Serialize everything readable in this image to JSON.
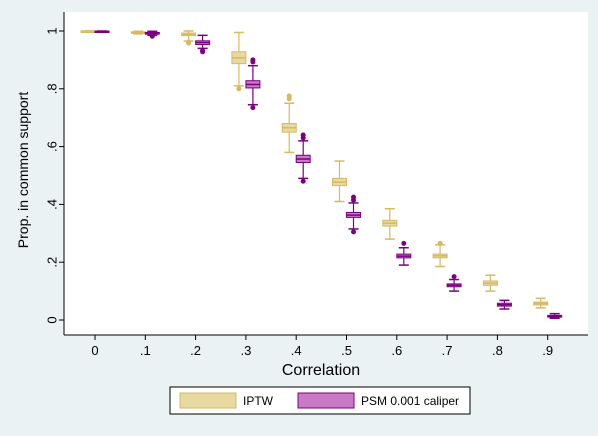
{
  "chart_data": {
    "type": "boxplot",
    "xlabel": "Correlation",
    "ylabel": "Prop. in common support",
    "categories": [
      "0",
      ".1",
      ".2",
      ".3",
      ".4",
      ".5",
      ".6",
      ".7",
      ".8",
      ".9"
    ],
    "x_values": [
      0,
      0.1,
      0.2,
      0.3,
      0.4,
      0.5,
      0.6,
      0.7,
      0.8,
      0.9
    ],
    "ylim": [
      0,
      1
    ],
    "y_ticks": [
      "0",
      ".2",
      ".4",
      ".6",
      ".8",
      "1"
    ],
    "grid": false,
    "legend_position": "bottom",
    "series": [
      {
        "name": "IPTW",
        "color": "#e8d9a0",
        "edge_color": "#d7b963",
        "boxes": [
          {
            "x": 0,
            "min": 0.997,
            "q1": 0.999,
            "median": 1.0,
            "q3": 1.0,
            "max": 1.0,
            "outliers": []
          },
          {
            "x": 0.1,
            "min": 0.99,
            "q1": 0.993,
            "median": 0.995,
            "q3": 0.997,
            "max": 0.999,
            "outliers": []
          },
          {
            "x": 0.2,
            "min": 0.965,
            "q1": 0.984,
            "median": 0.988,
            "q3": 0.993,
            "max": 1.0,
            "outliers": [
              0.962,
              0.958
            ]
          },
          {
            "x": 0.3,
            "min": 0.81,
            "q1": 0.887,
            "median": 0.907,
            "q3": 0.928,
            "max": 0.995,
            "outliers": [
              0.8
            ]
          },
          {
            "x": 0.4,
            "min": 0.58,
            "q1": 0.65,
            "median": 0.665,
            "q3": 0.68,
            "max": 0.75,
            "outliers": [
              0.775,
              0.765
            ]
          },
          {
            "x": 0.5,
            "min": 0.41,
            "q1": 0.465,
            "median": 0.477,
            "q3": 0.49,
            "max": 0.55,
            "outliers": []
          },
          {
            "x": 0.6,
            "min": 0.28,
            "q1": 0.325,
            "median": 0.335,
            "q3": 0.345,
            "max": 0.385,
            "outliers": []
          },
          {
            "x": 0.7,
            "min": 0.185,
            "q1": 0.215,
            "median": 0.222,
            "q3": 0.228,
            "max": 0.26,
            "outliers": [
              0.265
            ]
          },
          {
            "x": 0.8,
            "min": 0.1,
            "q1": 0.12,
            "median": 0.127,
            "q3": 0.135,
            "max": 0.155,
            "outliers": []
          },
          {
            "x": 0.9,
            "min": 0.042,
            "q1": 0.052,
            "median": 0.057,
            "q3": 0.062,
            "max": 0.075,
            "outliers": []
          }
        ]
      },
      {
        "name": "PSM 0.001 caliper",
        "color": "#c97ac4",
        "edge_color": "#7b0080",
        "boxes": [
          {
            "x": 0,
            "min": 0.997,
            "q1": 0.998,
            "median": 0.999,
            "q3": 1.0,
            "max": 1.0,
            "outliers": []
          },
          {
            "x": 0.1,
            "min": 0.985,
            "q1": 0.989,
            "median": 0.992,
            "q3": 0.995,
            "max": 0.999,
            "outliers": [
              0.982
            ]
          },
          {
            "x": 0.2,
            "min": 0.94,
            "q1": 0.953,
            "median": 0.96,
            "q3": 0.966,
            "max": 0.985,
            "outliers": [
              0.932,
              0.928
            ]
          },
          {
            "x": 0.3,
            "min": 0.745,
            "q1": 0.803,
            "median": 0.815,
            "q3": 0.828,
            "max": 0.88,
            "outliers": [
              0.9,
              0.893,
              0.735
            ]
          },
          {
            "x": 0.4,
            "min": 0.49,
            "q1": 0.545,
            "median": 0.557,
            "q3": 0.57,
            "max": 0.62,
            "outliers": [
              0.64,
              0.63,
              0.48
            ]
          },
          {
            "x": 0.5,
            "min": 0.315,
            "q1": 0.355,
            "median": 0.363,
            "q3": 0.372,
            "max": 0.405,
            "outliers": [
              0.425,
              0.415,
              0.305
            ]
          },
          {
            "x": 0.6,
            "min": 0.19,
            "q1": 0.215,
            "median": 0.221,
            "q3": 0.228,
            "max": 0.25,
            "outliers": [
              0.265
            ]
          },
          {
            "x": 0.7,
            "min": 0.1,
            "q1": 0.115,
            "median": 0.12,
            "q3": 0.125,
            "max": 0.14,
            "outliers": [
              0.15
            ]
          },
          {
            "x": 0.8,
            "min": 0.038,
            "q1": 0.048,
            "median": 0.053,
            "q3": 0.058,
            "max": 0.068,
            "outliers": []
          },
          {
            "x": 0.9,
            "min": 0.006,
            "q1": 0.01,
            "median": 0.013,
            "q3": 0.016,
            "max": 0.022,
            "outliers": []
          }
        ]
      }
    ]
  }
}
